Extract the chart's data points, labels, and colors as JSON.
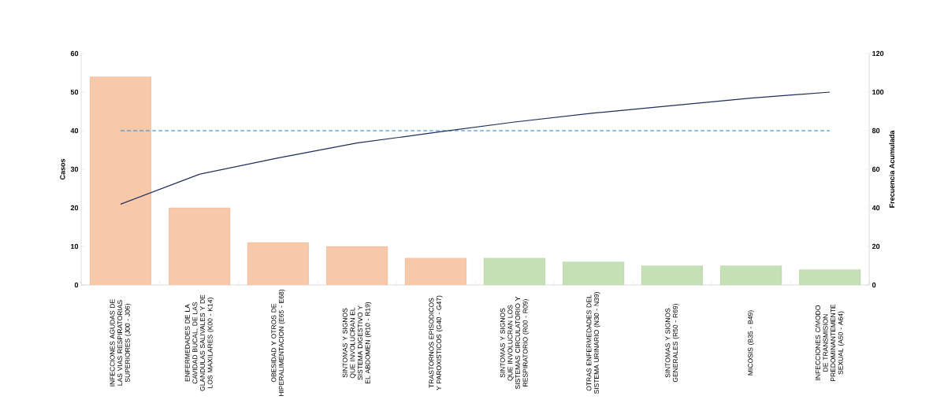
{
  "chart_data": {
    "type": "bar",
    "ylabel": "Casos",
    "y2label": "Frecuencia Acumulada",
    "categories": [
      "INFECCIONES AGUDAS DE LAS VIAS RESPIRATORIAS SUPERIORES (J00 - J06)",
      "ENFERMEDADES DE LA CAVIDAD BUCAL, DE LAS GLANDULAS SALIVALES Y DE LOS MAXILARES (K00 - K14)",
      "OBESIDAD Y OTROS DE HIPERALIMENTACION (E65 - E68)",
      "SINTOMAS Y SIGNOS QUE INVOLUCRAN EL SISTEMA DIGESTIVO Y EL ABDOMEN (R10 - R19)",
      "TRASTORNOS EPISODICOS Y PAROXISTICOS (G40 - G47)",
      "SINTOMAS Y SIGNOS QUE INVOLUCRAN LOS SISTEMAS CIRCULATORIO Y RESPIRATORIO (R00 - R09)",
      "OTRAS ENFERMEDADES DEL SISTEMA URINARIO (N30 - N39)",
      "SINTOMAS Y SIGNOS GENERALES (R50 - R69)",
      "MICOSIS (B35 - B49)",
      "INFECCIONES C/MODO DE TRANSMISION PREDOMINANTEMENTE SEXUAL (A50 - A64)"
    ],
    "series": [
      {
        "colors": [
          "#f7c9aa",
          "#f7c9aa",
          "#f7c9aa",
          "#f7c9aa",
          "#f7c9aa",
          "#c5e0b4",
          "#c5e0b4",
          "#c5e0b4",
          "#c5e0b4",
          "#c5e0b4"
        ],
        "values": [
          54,
          20,
          11,
          10,
          7,
          7,
          6,
          5,
          5,
          4
        ]
      },
      {
        "type": "line",
        "axis": "y2",
        "color": "#1f2d5c",
        "values": [
          41.9,
          57.4,
          65.9,
          73.6,
          79.1,
          84.5,
          89.1,
          93.0,
          96.9,
          100
        ]
      }
    ],
    "ylim": [
      0,
      60
    ],
    "yticks": [
      0,
      10,
      20,
      30,
      40,
      50,
      60
    ],
    "y2lim": [
      0,
      120
    ],
    "y2ticks": [
      0,
      20,
      40,
      60,
      80,
      100,
      120
    ],
    "ref_lines": [
      {
        "axis": "y2",
        "value": 80,
        "color": "#2e86d0",
        "line_style": "dashed"
      }
    ],
    "grid": false
  }
}
